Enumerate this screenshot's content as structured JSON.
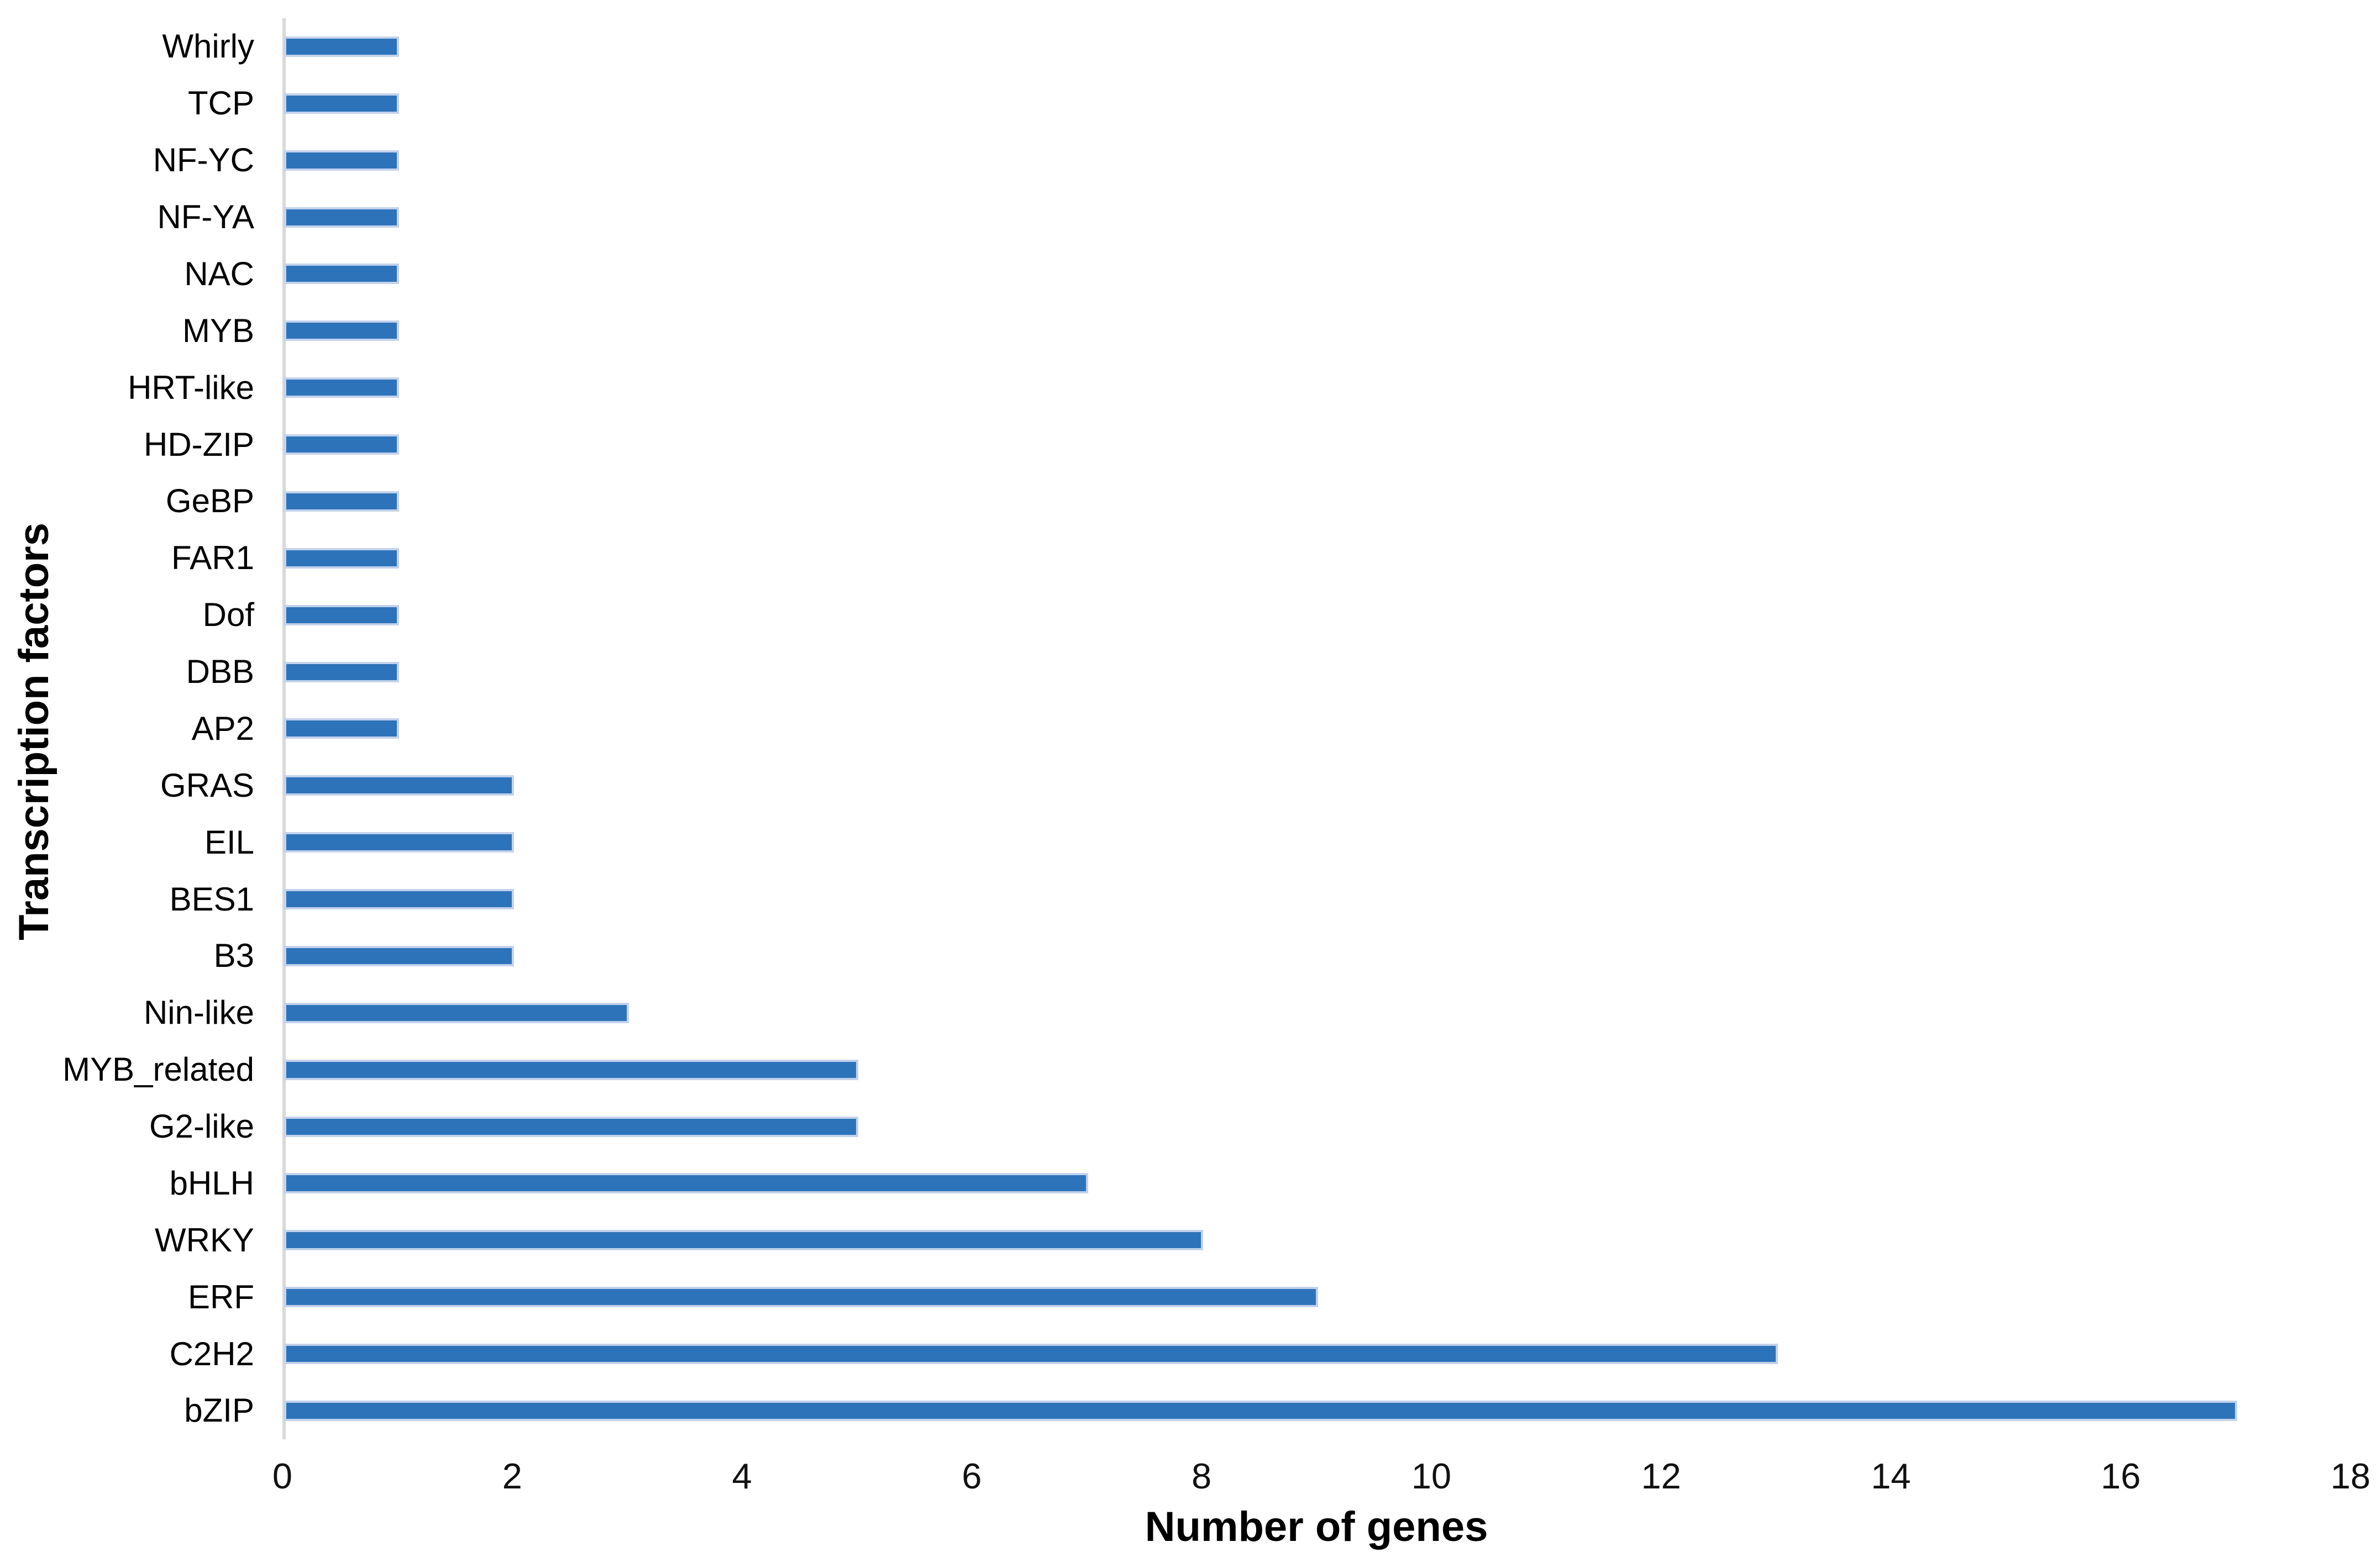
{
  "chart_data": {
    "type": "bar",
    "orientation": "horizontal",
    "categories": [
      "Whirly",
      "TCP",
      "NF-YC",
      "NF-YA",
      "NAC",
      "MYB",
      "HRT-like",
      "HD-ZIP",
      "GeBP",
      "FAR1",
      "Dof",
      "DBB",
      "AP2",
      "GRAS",
      "EIL",
      "BES1",
      "B3",
      "Nin-like",
      "MYB_related",
      "G2-like",
      "bHLH",
      "WRKY",
      "ERF",
      "C2H2",
      "bZIP"
    ],
    "values": [
      1,
      1,
      1,
      1,
      1,
      1,
      1,
      1,
      1,
      1,
      1,
      1,
      1,
      2,
      2,
      2,
      2,
      3,
      5,
      5,
      7,
      8,
      9,
      13,
      17
    ],
    "xlabel": "Number of genes",
    "ylabel": "Transcription factors",
    "xlim": [
      0,
      18
    ],
    "xticks": [
      0,
      2,
      4,
      6,
      8,
      10,
      12,
      14,
      16,
      18
    ],
    "grid": false,
    "legend": null,
    "bar_color": "#2D73B9",
    "bar_border_color": "#C3D2EC",
    "axis_line_color": "#D9D9D9"
  }
}
